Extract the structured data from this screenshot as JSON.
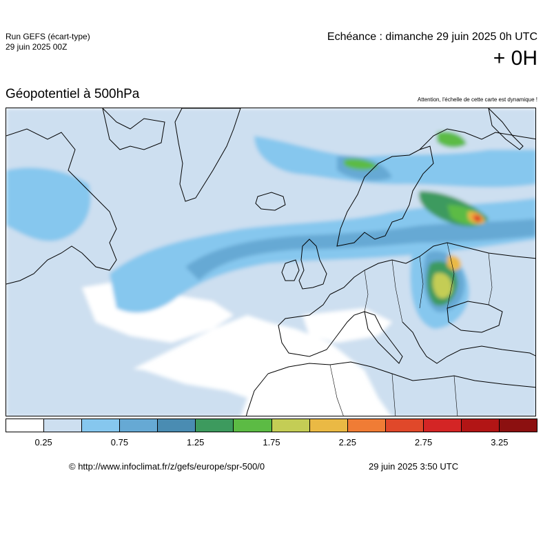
{
  "header": {
    "run_line1": "Run GEFS (écart-type)",
    "run_line2": "29 juin 2025 00Z",
    "echeance": "Echéance : dimanche 29 juin 2025 0h UTC",
    "lead_time": "+ 0H"
  },
  "map": {
    "field_title": "Géopotentiel à 500hPa",
    "dynamic_scale_note": "Attention, l'échelle de cette carte est dynamique !",
    "region": "europe",
    "hotspots": [
      {
        "area": "northwest Russia",
        "value_level": 3.0
      },
      {
        "area": "Balkans / Romania",
        "value_level": 2.25
      },
      {
        "area": "Kola / White Sea",
        "value_level": 2.0
      },
      {
        "area": "northern Scandinavia",
        "value_level": 1.75
      }
    ]
  },
  "legend": {
    "colors": [
      "#ffffff",
      "#cddff0",
      "#86c7ee",
      "#66a9d4",
      "#4a8cb2",
      "#3d9a5e",
      "#5cbb44",
      "#c4cd55",
      "#eab944",
      "#f07c35",
      "#e0482a",
      "#d42525",
      "#b21515",
      "#8c1010"
    ],
    "tick_labels": [
      "0.25",
      "0.75",
      "1.25",
      "1.75",
      "2.25",
      "2.75",
      "3.25"
    ]
  },
  "footer": {
    "copyright": "© http://www.infoclimat.fr/z/gefs/europe/spr-500/0",
    "generated": "29 juin 2025  3:50 UTC"
  }
}
